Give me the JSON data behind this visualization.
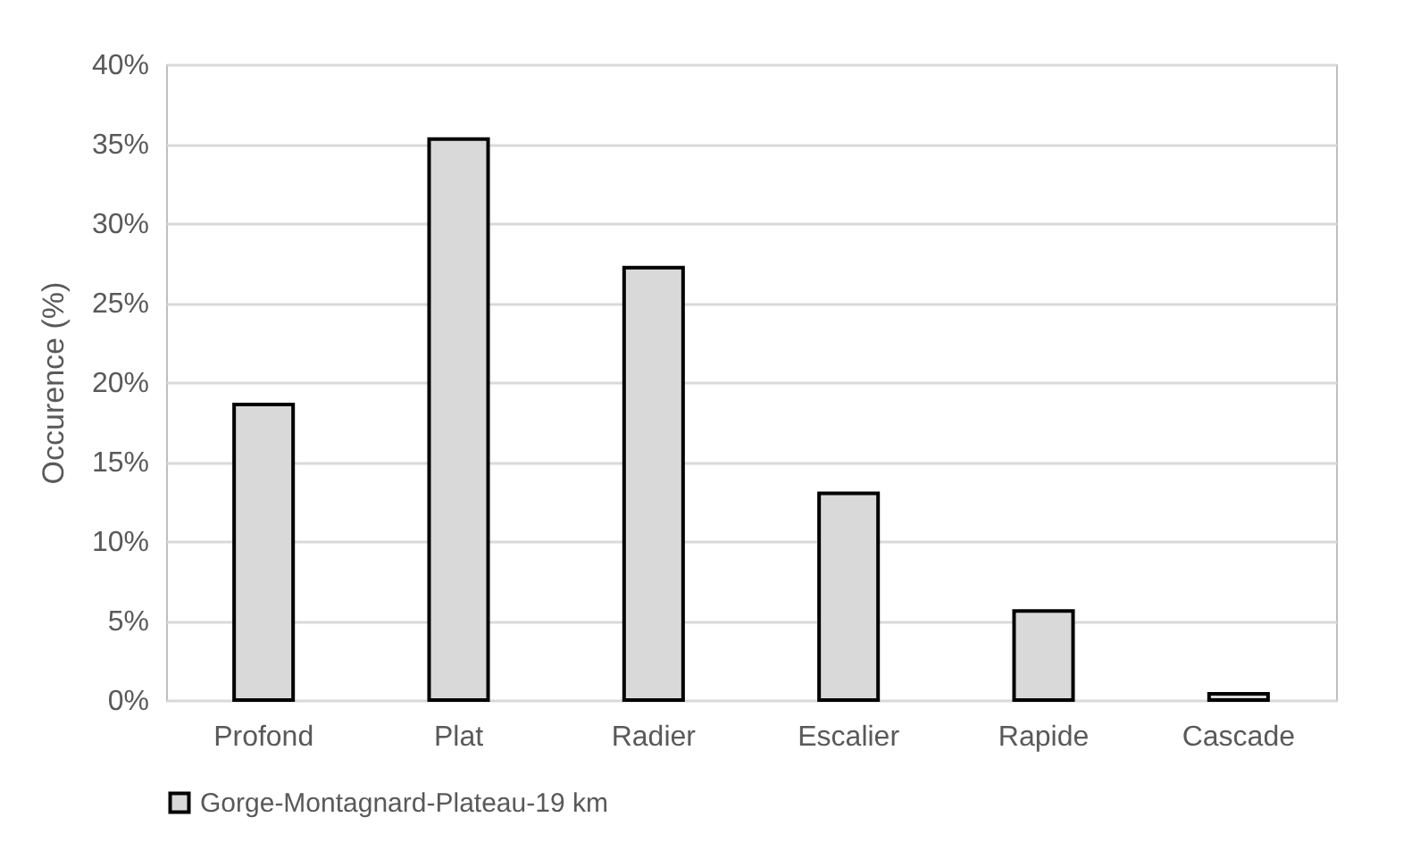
{
  "chart_data": {
    "type": "bar",
    "ylabel": "Occurence (%)",
    "categories": [
      "Profond",
      "Plat",
      "Radier",
      "Escalier",
      "Rapide",
      "Cascade"
    ],
    "series": [
      {
        "name": "Gorge-Montagnard-Plateau-19 km",
        "color": "#d9d9d9",
        "values": [
          18.6,
          35.3,
          27.2,
          13.0,
          5.6,
          0.4
        ]
      }
    ],
    "ylim": [
      0,
      40
    ],
    "yticks": [
      {
        "value": 0,
        "label": "0%"
      },
      {
        "value": 5,
        "label": "5%"
      },
      {
        "value": 10,
        "label": "10%"
      },
      {
        "value": 15,
        "label": "15%"
      },
      {
        "value": 20,
        "label": "20%"
      },
      {
        "value": 25,
        "label": "25%"
      },
      {
        "value": 30,
        "label": "30%"
      },
      {
        "value": 35,
        "label": "35%"
      },
      {
        "value": 40,
        "label": "40%"
      }
    ],
    "grid": "y",
    "legend": "bottom"
  }
}
